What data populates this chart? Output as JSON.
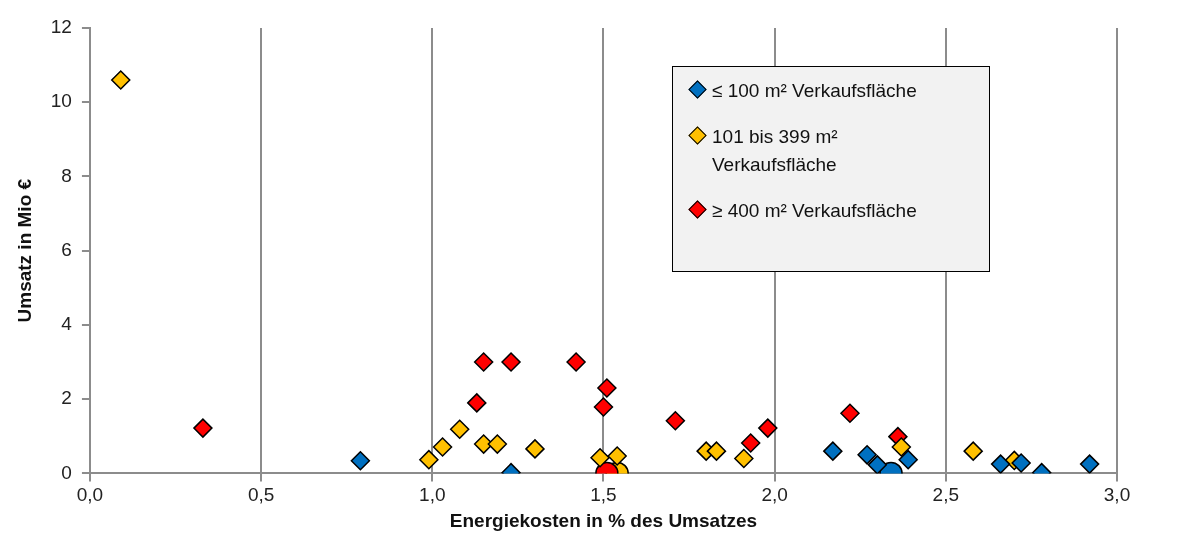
{
  "chart_data": {
    "type": "scatter",
    "xlabel": "Energiekosten in % des Umsatzes",
    "ylabel": "Umsatz in Mio €",
    "xlim": [
      0,
      3
    ],
    "xticks": [
      {
        "value": 0,
        "label": "0,0"
      },
      {
        "value": 0.5,
        "label": "0,5"
      },
      {
        "value": 1,
        "label": "1,0"
      },
      {
        "value": 1.5,
        "label": "1,5"
      },
      {
        "value": 2,
        "label": "2,0"
      },
      {
        "value": 2.5,
        "label": "2,5"
      },
      {
        "value": 3,
        "label": "3,0"
      }
    ],
    "ylim": [
      0,
      12
    ],
    "yticks": [
      0,
      2,
      4,
      6,
      8,
      10,
      12
    ],
    "grid": "x",
    "legend": "top right",
    "marker": "diamond",
    "series": [
      {
        "name": "≤ 100 m² Verkaufsfläche",
        "color": "#0070c0",
        "x": [
          0.79,
          1.23,
          2.17,
          2.27,
          2.3,
          2.39,
          2.66,
          2.72,
          2.78,
          2.92
        ],
        "values": [
          0.34,
          0.02,
          0.6,
          0.5,
          0.23,
          0.37,
          0.25,
          0.28,
          0.02,
          0.25
        ]
      },
      {
        "name": "101 bis 399 m² Verkaufsfläche",
        "color": "#ffc000",
        "x": [
          0.09,
          0.99,
          1.03,
          1.08,
          1.15,
          1.19,
          1.3,
          1.49,
          1.54,
          1.8,
          1.83,
          1.91,
          2.37,
          2.58,
          2.7
        ],
        "values": [
          10.6,
          0.37,
          0.71,
          1.19,
          0.79,
          0.79,
          0.66,
          0.42,
          0.47,
          0.6,
          0.6,
          0.4,
          0.71,
          0.6,
          0.35
        ]
      },
      {
        "name": "≥ 400 m² Verkaufsfläche",
        "color": "#ff0000",
        "x": [
          0.33,
          1.13,
          1.15,
          1.23,
          1.42,
          1.5,
          1.51,
          1.71,
          1.93,
          1.98,
          2.22,
          2.36
        ],
        "values": [
          1.22,
          1.9,
          3,
          3,
          3,
          1.79,
          2.3,
          1.42,
          0.82,
          1.22,
          1.62,
          0.99
        ]
      },
      {
        "color": "#ff0000",
        "marker": "circle",
        "x": [
          1.51
        ],
        "values": [
          0
        ]
      },
      {
        "color": "#ffc000",
        "marker": "circle",
        "x": [
          1.54
        ],
        "values": [
          0
        ]
      },
      {
        "color": "#0070c0",
        "marker": "circle",
        "x": [
          2.34
        ],
        "values": [
          0
        ]
      }
    ]
  }
}
